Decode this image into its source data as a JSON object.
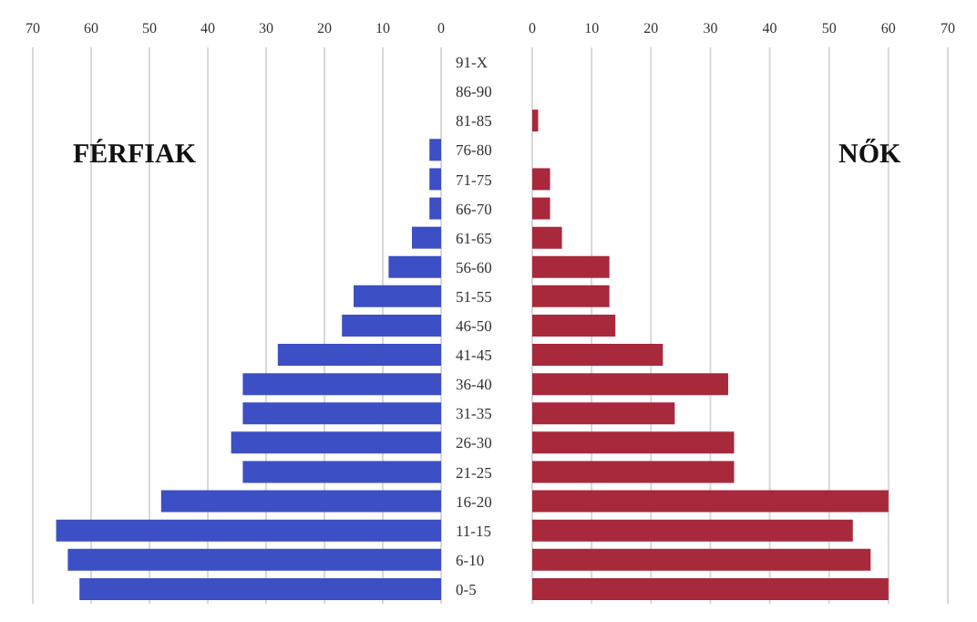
{
  "chart_data": [
    {
      "type": "bar",
      "orientation": "horizontal",
      "categories": [
        "91-X",
        "86-90",
        "81-85",
        "76-80",
        "71-75",
        "66-70",
        "61-65",
        "56-60",
        "51-55",
        "46-50",
        "41-45",
        "36-40",
        "31-35",
        "26-30",
        "21-25",
        "16-20",
        "11-15",
        "6-10",
        "0-5"
      ],
      "series": [
        {
          "color": "#3c4fc4",
          "values": [
            0,
            0,
            0,
            2,
            2,
            2,
            5,
            9,
            15,
            17,
            28,
            34,
            34,
            36,
            34,
            48,
            66,
            64,
            62
          ]
        }
      ],
      "xlim": [
        70,
        0
      ],
      "xticks": [
        70,
        60,
        50,
        40,
        30,
        20,
        10,
        0
      ],
      "grid": "x",
      "annotations": [
        "FÉRFIAK"
      ]
    },
    {
      "type": "bar",
      "orientation": "horizontal",
      "categories": [
        null,
        null,
        null,
        null,
        null,
        null,
        null,
        null,
        null,
        null,
        null,
        null,
        null,
        null,
        null,
        null,
        null,
        null,
        null
      ],
      "series": [
        {
          "color": "#a8283c",
          "values": [
            0,
            0,
            1,
            0,
            3,
            3,
            5,
            13,
            13,
            14,
            22,
            33,
            24,
            34,
            34,
            60,
            54,
            57,
            60
          ]
        }
      ],
      "xlim": [
        0,
        70
      ],
      "xticks": [
        0,
        10,
        20,
        30,
        40,
        50,
        60,
        70
      ],
      "grid": "x",
      "tick_labels": "x",
      "annotations": [
        "NŐK"
      ]
    }
  ]
}
